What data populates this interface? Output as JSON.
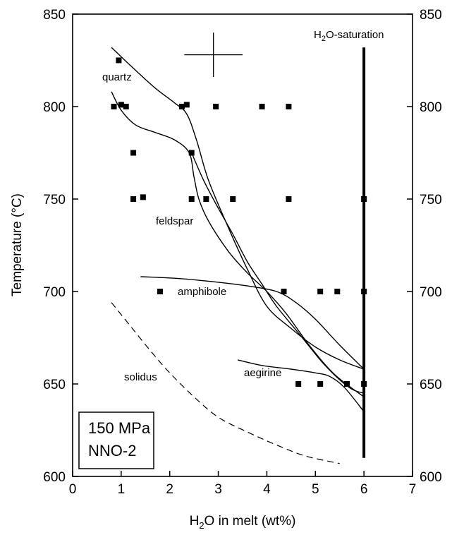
{
  "chart_data": {
    "type": "scatter",
    "xlabel": {
      "pre": "H",
      "sub": "2",
      "post": "O in melt (wt%)"
    },
    "ylabel": "Temperature (°C)",
    "xlim": [
      0,
      7
    ],
    "ylim": [
      600,
      850
    ],
    "x_ticks": [
      0,
      1,
      2,
      3,
      4,
      5,
      6,
      7
    ],
    "y_ticks": [
      600,
      650,
      700,
      750,
      800,
      850
    ],
    "y_ticks_right": true,
    "grid": false,
    "conditions": [
      "150 MPa",
      "NNO-2"
    ],
    "points": [
      [
        0.95,
        825
      ],
      [
        0.85,
        800
      ],
      [
        1.0,
        801
      ],
      [
        1.1,
        800
      ],
      [
        2.25,
        800
      ],
      [
        2.35,
        801
      ],
      [
        2.95,
        800
      ],
      [
        3.9,
        800
      ],
      [
        4.45,
        800
      ],
      [
        1.25,
        775
      ],
      [
        2.45,
        775
      ],
      [
        1.25,
        750
      ],
      [
        1.45,
        751
      ],
      [
        2.45,
        750
      ],
      [
        2.75,
        750
      ],
      [
        3.3,
        750
      ],
      [
        4.45,
        750
      ],
      [
        6.0,
        750
      ],
      [
        1.8,
        700
      ],
      [
        4.35,
        700
      ],
      [
        5.1,
        700
      ],
      [
        5.45,
        700
      ],
      [
        6.0,
        700
      ],
      [
        4.65,
        650
      ],
      [
        5.1,
        650
      ],
      [
        5.65,
        650
      ],
      [
        6.0,
        650
      ]
    ],
    "error_bar": {
      "x": 2.9,
      "y": 828,
      "dx": 0.6,
      "dy": 12
    },
    "curves": [
      {
        "name": "quartz",
        "style": "solid",
        "points": [
          [
            0.8,
            832
          ],
          [
            1.2,
            822
          ],
          [
            1.7,
            810
          ],
          [
            2.1,
            802
          ],
          [
            2.35,
            796
          ],
          [
            2.55,
            782
          ],
          [
            2.8,
            760
          ],
          [
            3.2,
            735
          ],
          [
            3.6,
            712
          ],
          [
            4.0,
            692
          ],
          [
            4.5,
            680
          ],
          [
            5.0,
            670
          ],
          [
            5.5,
            663
          ],
          [
            6.0,
            658
          ]
        ]
      },
      {
        "name": "feldspar",
        "style": "solid",
        "points": [
          [
            0.8,
            808
          ],
          [
            1.0,
            798
          ],
          [
            1.3,
            790
          ],
          [
            1.7,
            786
          ],
          [
            2.1,
            782
          ],
          [
            2.4,
            775
          ],
          [
            2.5,
            762
          ],
          [
            2.6,
            750
          ],
          [
            2.8,
            738
          ],
          [
            3.2,
            722
          ],
          [
            3.6,
            710
          ],
          [
            4.0,
            700
          ],
          [
            4.4,
            688
          ],
          [
            4.9,
            670
          ],
          [
            5.4,
            655
          ],
          [
            6.0,
            643
          ]
        ]
      },
      {
        "name": "",
        "style": "solid",
        "points": [
          [
            2.45,
            775
          ],
          [
            2.7,
            760
          ],
          [
            3.0,
            745
          ],
          [
            3.3,
            731
          ],
          [
            3.6,
            716
          ],
          [
            3.9,
            704
          ],
          [
            4.2,
            692
          ],
          [
            4.7,
            676
          ],
          [
            5.2,
            660
          ],
          [
            5.7,
            648
          ],
          [
            6.0,
            645
          ]
        ]
      },
      {
        "name": "amphibole",
        "style": "solid",
        "points": [
          [
            1.4,
            708
          ],
          [
            2.2,
            707
          ],
          [
            3.0,
            705
          ],
          [
            3.6,
            703
          ],
          [
            4.2,
            700
          ],
          [
            4.6,
            694
          ],
          [
            5.0,
            685
          ],
          [
            5.5,
            671
          ],
          [
            6.0,
            658
          ]
        ]
      },
      {
        "name": "aegirine",
        "style": "solid",
        "points": [
          [
            3.4,
            663
          ],
          [
            3.9,
            660
          ],
          [
            4.5,
            658
          ],
          [
            5.0,
            656
          ],
          [
            5.3,
            654
          ],
          [
            5.6,
            648
          ],
          [
            6.0,
            635
          ]
        ]
      },
      {
        "name": "solidus",
        "style": "dashed",
        "points": [
          [
            0.8,
            694
          ],
          [
            1.2,
            681
          ],
          [
            1.6,
            668
          ],
          [
            2.0,
            656
          ],
          [
            2.5,
            643
          ],
          [
            3.0,
            632
          ],
          [
            3.6,
            624
          ],
          [
            4.2,
            617
          ],
          [
            4.8,
            611
          ],
          [
            5.5,
            607
          ]
        ]
      },
      {
        "name": "H2O-saturation",
        "style": "thick",
        "points": [
          [
            6.0,
            832
          ],
          [
            6.0,
            610
          ]
        ]
      }
    ],
    "labels": {
      "quartz": "quartz",
      "feldspar": "feldspar",
      "amphibole": "amphibole",
      "aegirine": "aegirine",
      "solidus": "solidus",
      "saturation": {
        "pre": "H",
        "sub": "2",
        "post": "O-saturation"
      }
    }
  }
}
